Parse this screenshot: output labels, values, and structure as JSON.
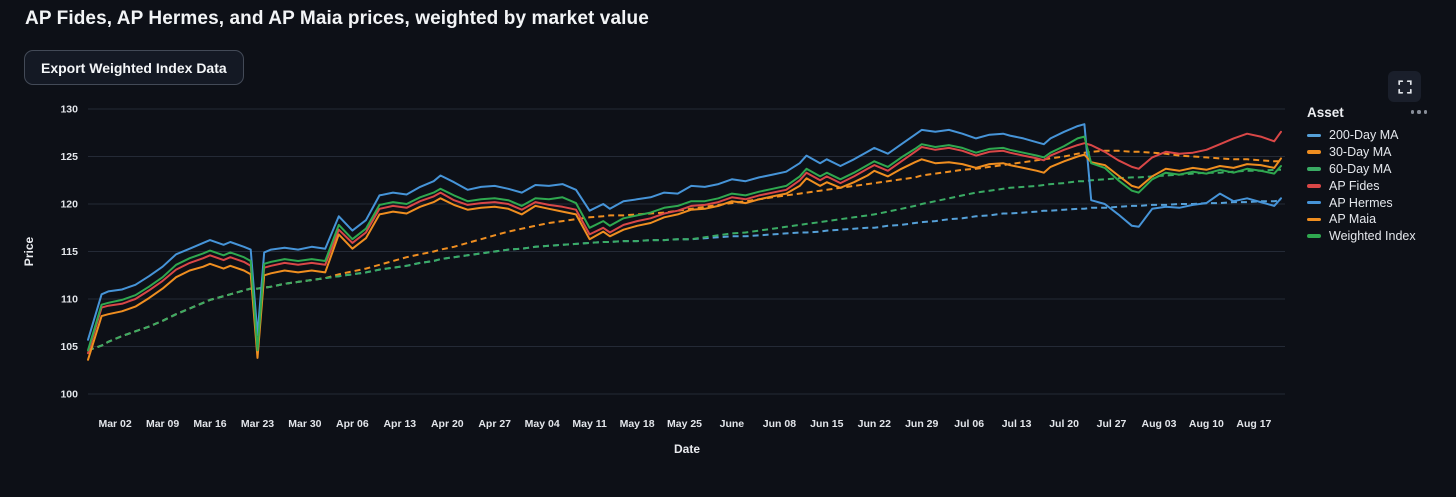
{
  "header": {
    "title": "AP Fides, AP Hermes, and AP Maia prices, weighted by market value"
  },
  "toolbar": {
    "export_button_label": "Export Weighted Index Data"
  },
  "controls": {
    "expand_icon": "fullscreen-expand-icon",
    "legend_menu_icon": "ellipsis-icon"
  },
  "legend": {
    "title": "Asset",
    "items": [
      {
        "label": "200-Day MA",
        "color": "#55a0d8"
      },
      {
        "label": "30-Day MA",
        "color": "#ef8e20"
      },
      {
        "label": "60-Day MA",
        "color": "#3aab64"
      },
      {
        "label": "AP Fides",
        "color": "#d94747"
      },
      {
        "label": "AP Hermes",
        "color": "#4694d8"
      },
      {
        "label": "AP Maia",
        "color": "#ef8e20"
      },
      {
        "label": "Weighted Index",
        "color": "#2fa84f"
      }
    ]
  },
  "chart_data": {
    "type": "line",
    "xlabel": "Date",
    "ylabel": "Price",
    "ylim": [
      100,
      130
    ],
    "grid": "horizontal-only",
    "legend_position": "right",
    "y_ticks": [
      100,
      105,
      110,
      115,
      120,
      125,
      130
    ],
    "x_ticks": [
      {
        "label": "Mar 02",
        "d": 4
      },
      {
        "label": "Mar 09",
        "d": 11
      },
      {
        "label": "Mar 16",
        "d": 18
      },
      {
        "label": "Mar 23",
        "d": 25
      },
      {
        "label": "Mar 30",
        "d": 32
      },
      {
        "label": "Apr 06",
        "d": 39
      },
      {
        "label": "Apr 13",
        "d": 46
      },
      {
        "label": "Apr 20",
        "d": 53
      },
      {
        "label": "Apr 27",
        "d": 60
      },
      {
        "label": "May 04",
        "d": 67
      },
      {
        "label": "May 11",
        "d": 74
      },
      {
        "label": "May 18",
        "d": 81
      },
      {
        "label": "May 25",
        "d": 88
      },
      {
        "label": "June",
        "d": 95
      },
      {
        "label": "Jun 08",
        "d": 102
      },
      {
        "label": "Jun 15",
        "d": 109
      },
      {
        "label": "Jun 22",
        "d": 116
      },
      {
        "label": "Jun 29",
        "d": 123
      },
      {
        "label": "Jul 06",
        "d": 130
      },
      {
        "label": "Jul 13",
        "d": 137
      },
      {
        "label": "Jul 20",
        "d": 144
      },
      {
        "label": "Jul 27",
        "d": 151
      },
      {
        "label": "Aug 03",
        "d": 158
      },
      {
        "label": "Aug 10",
        "d": 165
      },
      {
        "label": "Aug 17",
        "d": 172
      }
    ],
    "x": [
      0,
      2,
      3,
      5,
      7,
      9,
      11,
      13,
      15,
      17,
      18,
      20,
      21,
      23,
      24,
      25,
      26,
      27,
      29,
      31,
      33,
      35,
      37,
      39,
      41,
      43,
      45,
      47,
      49,
      51,
      52,
      54,
      56,
      58,
      60,
      62,
      64,
      66,
      68,
      70,
      72,
      74,
      76,
      77,
      79,
      81,
      83,
      85,
      87,
      89,
      91,
      93,
      95,
      97,
      99,
      101,
      103,
      105,
      106,
      108,
      109,
      111,
      113,
      115,
      116,
      118,
      120,
      122,
      123,
      125,
      127,
      129,
      131,
      133,
      135,
      136,
      138,
      140,
      141,
      142,
      144,
      146,
      147,
      148,
      150,
      152,
      154,
      155,
      157,
      159,
      161,
      163,
      165,
      167,
      169,
      171,
      173,
      175,
      176
    ],
    "series": [
      {
        "name": "200-Day MA",
        "color": "#55a0d8",
        "dash": true,
        "values": [
          104.6,
          105.1,
          105.5,
          106.1,
          106.6,
          107.1,
          107.7,
          108.4,
          109.0,
          109.6,
          109.9,
          110.3,
          110.5,
          110.9,
          111.1,
          111.1,
          111.2,
          111.3,
          111.6,
          111.8,
          112.0,
          112.2,
          112.4,
          112.6,
          112.8,
          113.1,
          113.3,
          113.5,
          113.8,
          114.0,
          114.2,
          114.4,
          114.6,
          114.8,
          115.0,
          115.2,
          115.3,
          115.5,
          115.6,
          115.7,
          115.8,
          115.9,
          116.0,
          116.0,
          116.1,
          116.1,
          116.2,
          116.2,
          116.3,
          116.3,
          116.4,
          116.5,
          116.6,
          116.6,
          116.7,
          116.8,
          116.9,
          117.0,
          117.0,
          117.1,
          117.2,
          117.3,
          117.4,
          117.5,
          117.5,
          117.7,
          117.8,
          118.0,
          118.1,
          118.2,
          118.4,
          118.5,
          118.7,
          118.8,
          119.0,
          119.0,
          119.1,
          119.2,
          119.3,
          119.3,
          119.4,
          119.5,
          119.5,
          119.6,
          119.6,
          119.7,
          119.8,
          119.8,
          119.9,
          119.9,
          120.0,
          120.0,
          120.1,
          120.1,
          120.2,
          120.2,
          120.3,
          120.3,
          120.4
        ]
      },
      {
        "name": "30-Day MA",
        "color": "#ef8e20",
        "dash": true,
        "values": [
          104.6,
          105.1,
          105.5,
          106.1,
          106.6,
          107.1,
          107.7,
          108.4,
          109.0,
          109.6,
          109.9,
          110.3,
          110.5,
          110.9,
          111.1,
          111.1,
          111.2,
          111.3,
          111.6,
          111.8,
          112.0,
          112.2,
          112.6,
          112.9,
          113.2,
          113.6,
          114.0,
          114.4,
          114.7,
          115.0,
          115.2,
          115.5,
          115.9,
          116.3,
          116.7,
          117.1,
          117.4,
          117.7,
          118.0,
          118.2,
          118.4,
          118.6,
          118.7,
          118.8,
          118.8,
          118.9,
          119.0,
          119.1,
          119.3,
          119.5,
          119.7,
          119.9,
          120.1,
          120.3,
          120.5,
          120.7,
          120.9,
          121.1,
          121.2,
          121.4,
          121.5,
          121.7,
          121.9,
          122.1,
          122.2,
          122.4,
          122.6,
          122.8,
          123.0,
          123.2,
          123.4,
          123.6,
          123.7,
          123.9,
          124.1,
          124.2,
          124.4,
          124.6,
          124.7,
          124.8,
          125.0,
          125.3,
          125.4,
          125.5,
          125.6,
          125.6,
          125.5,
          125.5,
          125.4,
          125.3,
          125.1,
          125.0,
          124.9,
          124.8,
          124.7,
          124.7,
          124.6,
          124.5,
          124.5
        ]
      },
      {
        "name": "60-Day MA",
        "color": "#3aab64",
        "dash": true,
        "values": [
          104.6,
          105.1,
          105.5,
          106.1,
          106.6,
          107.1,
          107.7,
          108.4,
          109.0,
          109.6,
          109.9,
          110.3,
          110.5,
          110.9,
          111.1,
          111.1,
          111.2,
          111.3,
          111.6,
          111.8,
          112.0,
          112.2,
          112.4,
          112.6,
          112.8,
          113.1,
          113.3,
          113.5,
          113.8,
          114.0,
          114.2,
          114.4,
          114.6,
          114.8,
          115.0,
          115.2,
          115.3,
          115.5,
          115.6,
          115.7,
          115.8,
          115.9,
          116.0,
          116.0,
          116.1,
          116.1,
          116.2,
          116.2,
          116.3,
          116.3,
          116.5,
          116.7,
          116.9,
          117.0,
          117.2,
          117.4,
          117.6,
          117.8,
          117.9,
          118.1,
          118.2,
          118.4,
          118.6,
          118.8,
          118.9,
          119.2,
          119.5,
          119.8,
          120.0,
          120.3,
          120.6,
          120.9,
          121.2,
          121.4,
          121.6,
          121.7,
          121.8,
          121.9,
          122.0,
          122.1,
          122.2,
          122.4,
          122.4,
          122.5,
          122.6,
          122.7,
          122.8,
          122.8,
          122.9,
          123.0,
          123.1,
          123.2,
          123.3,
          123.3,
          123.4,
          123.5,
          123.5,
          123.6,
          123.6
        ]
      },
      {
        "name": "AP Fides",
        "color": "#d94747",
        "dash": false,
        "values": [
          104.3,
          109.1,
          109.3,
          109.5,
          110.0,
          110.9,
          111.9,
          113.1,
          113.8,
          114.3,
          114.6,
          114.1,
          114.4,
          113.9,
          113.5,
          104.3,
          113.3,
          113.5,
          113.8,
          113.6,
          113.8,
          113.6,
          117.3,
          115.9,
          117.0,
          119.5,
          119.8,
          119.6,
          120.3,
          120.8,
          121.2,
          120.4,
          119.9,
          120.1,
          120.2,
          120.0,
          119.4,
          120.2,
          119.9,
          119.7,
          119.4,
          116.8,
          117.5,
          117.0,
          117.8,
          118.2,
          118.5,
          119.0,
          119.3,
          119.8,
          119.9,
          120.2,
          120.7,
          120.5,
          120.9,
          121.2,
          121.5,
          122.5,
          123.3,
          122.5,
          122.9,
          122.2,
          122.9,
          123.7,
          124.1,
          123.5,
          124.5,
          125.5,
          126.0,
          125.7,
          125.9,
          125.6,
          125.1,
          125.5,
          125.6,
          125.4,
          125.1,
          124.8,
          124.6,
          125.1,
          125.7,
          126.2,
          126.4,
          126.2,
          125.5,
          124.6,
          123.9,
          123.7,
          124.9,
          125.5,
          125.3,
          125.4,
          125.7,
          126.3,
          126.9,
          127.4,
          127.1,
          126.6,
          127.6
        ]
      },
      {
        "name": "AP Hermes",
        "color": "#4694d8",
        "dash": false,
        "values": [
          105.7,
          110.5,
          110.8,
          111.0,
          111.5,
          112.4,
          113.4,
          114.7,
          115.3,
          115.9,
          116.2,
          115.7,
          116.0,
          115.5,
          115.2,
          106.2,
          114.9,
          115.2,
          115.4,
          115.2,
          115.5,
          115.3,
          118.7,
          117.2,
          118.3,
          120.9,
          121.2,
          121.0,
          121.8,
          122.4,
          123.0,
          122.3,
          121.5,
          121.8,
          121.9,
          121.6,
          121.2,
          122.0,
          121.9,
          122.1,
          121.5,
          119.3,
          120.0,
          119.5,
          120.3,
          120.5,
          120.7,
          121.2,
          121.1,
          121.9,
          121.8,
          122.1,
          122.6,
          122.4,
          122.8,
          123.1,
          123.4,
          124.3,
          125.1,
          124.3,
          124.7,
          124.0,
          124.7,
          125.5,
          125.9,
          125.3,
          126.3,
          127.3,
          127.8,
          127.6,
          127.8,
          127.4,
          126.9,
          127.3,
          127.4,
          127.2,
          126.9,
          126.5,
          126.3,
          126.9,
          127.6,
          128.2,
          128.4,
          120.4,
          120.0,
          118.9,
          117.7,
          117.6,
          119.5,
          119.7,
          119.6,
          119.9,
          120.1,
          121.1,
          120.3,
          120.6,
          120.2,
          119.8,
          120.6
        ]
      },
      {
        "name": "AP Maia",
        "color": "#ef8e20",
        "dash": false,
        "values": [
          103.6,
          108.2,
          108.4,
          108.7,
          109.2,
          110.1,
          111.1,
          112.3,
          113.0,
          113.4,
          113.7,
          113.2,
          113.5,
          113.0,
          112.6,
          103.8,
          112.5,
          112.7,
          113.0,
          112.8,
          113.0,
          112.8,
          116.8,
          115.3,
          116.4,
          118.9,
          119.2,
          119.0,
          119.7,
          120.2,
          120.6,
          119.9,
          119.4,
          119.6,
          119.7,
          119.5,
          118.9,
          119.8,
          119.5,
          119.2,
          118.9,
          116.3,
          117.1,
          116.6,
          117.3,
          117.7,
          118.0,
          118.6,
          118.9,
          119.4,
          119.5,
          119.8,
          120.3,
          120.1,
          120.5,
          120.8,
          121.1,
          121.9,
          122.7,
          121.9,
          122.3,
          121.7,
          122.3,
          123.0,
          123.5,
          122.9,
          123.7,
          124.4,
          124.7,
          124.3,
          124.4,
          124.2,
          123.8,
          124.2,
          124.3,
          124.1,
          123.8,
          123.5,
          123.3,
          123.9,
          124.5,
          125.0,
          125.2,
          124.4,
          124.1,
          123.0,
          121.9,
          121.7,
          122.9,
          123.7,
          123.5,
          123.8,
          123.6,
          124.0,
          123.8,
          124.2,
          124.1,
          123.8,
          124.8
        ]
      },
      {
        "name": "Weighted Index",
        "color": "#2fa84f",
        "dash": false,
        "values": [
          104.6,
          109.4,
          109.6,
          109.9,
          110.4,
          111.3,
          112.3,
          113.6,
          114.3,
          114.8,
          115.1,
          114.6,
          114.9,
          114.4,
          114.0,
          104.6,
          113.7,
          113.9,
          114.2,
          114.0,
          114.2,
          114.0,
          117.8,
          116.3,
          117.4,
          119.9,
          120.2,
          120.0,
          120.7,
          121.2,
          121.6,
          120.9,
          120.3,
          120.5,
          120.6,
          120.4,
          119.8,
          120.6,
          120.5,
          120.7,
          120.1,
          117.5,
          118.2,
          117.7,
          118.5,
          118.8,
          119.1,
          119.6,
          119.8,
          120.3,
          120.3,
          120.6,
          121.1,
          120.9,
          121.3,
          121.6,
          121.9,
          122.9,
          123.7,
          122.9,
          123.3,
          122.6,
          123.3,
          124.1,
          124.5,
          123.9,
          124.9,
          125.8,
          126.3,
          126.0,
          126.2,
          125.9,
          125.4,
          125.8,
          125.9,
          125.7,
          125.4,
          125.1,
          124.9,
          125.4,
          126.1,
          126.9,
          127.1,
          124.3,
          123.8,
          122.5,
          121.4,
          121.2,
          122.6,
          123.3,
          123.1,
          123.4,
          123.2,
          123.6,
          123.3,
          123.7,
          123.5,
          123.2,
          124.0
        ]
      }
    ]
  }
}
